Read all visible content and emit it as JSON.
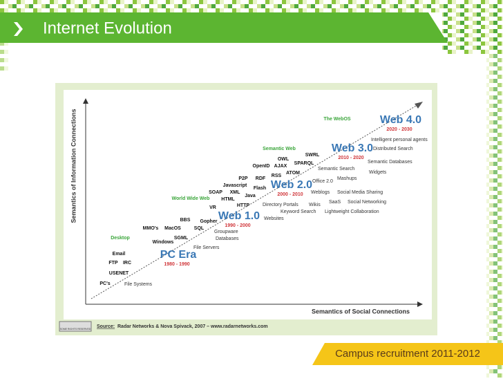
{
  "slide": {
    "title": "Internet Evolution",
    "footer": "Campus recruitment 2011-2012"
  },
  "diagram": {
    "y_axis_label": "Semantics of Information Connections",
    "x_axis_label": "Semantics of Social Connections",
    "eras": [
      {
        "name": "Web 4.0",
        "years": "2020 - 2030"
      },
      {
        "name": "Web 3.0",
        "years": "2010 - 2020"
      },
      {
        "name": "Web 2.0",
        "years": "2000 - 2010"
      },
      {
        "name": "Web 1.0",
        "years": "1990 - 2000"
      },
      {
        "name": "PC Era",
        "years": "1980 - 1990"
      }
    ],
    "categories": [
      "The WebOS",
      "Semantic Web",
      "World Wide Web",
      "Desktop"
    ],
    "technologies": [
      "SWRL",
      "OWL",
      "SPARQL",
      "OpenID",
      "AJAX",
      "ATOM",
      "P2P",
      "RDF",
      "RSS",
      "Javascript",
      "Flash",
      "SOAP",
      "XML",
      "Java",
      "HTML",
      "HTTP",
      "VR",
      "BBS",
      "Gopher",
      "MMO's",
      "MacOS",
      "SQL",
      "SGML",
      "Windows",
      "Email",
      "FTP",
      "IRC",
      "USENET",
      "PC's"
    ],
    "descriptions": [
      "Intelligent personal agents",
      "Distributed Search",
      "Semantic Databases",
      "Semantic Search",
      "Widgets",
      "Office 2.0",
      "Mashups",
      "Weblogs",
      "Social Media Sharing",
      "SaaS",
      "Social Networking",
      "Directory Portals",
      "Wikis",
      "Keyword Search",
      "Lightweight Collaboration",
      "Websites",
      "Groupware",
      "Databases",
      "File Servers",
      "File Systems"
    ],
    "license": "SOME RIGHTS RESERVED",
    "source_label": "Source:",
    "source_text": "Radar Networks & Nova Spivack, 2007 – www.radarnetworks.com"
  }
}
